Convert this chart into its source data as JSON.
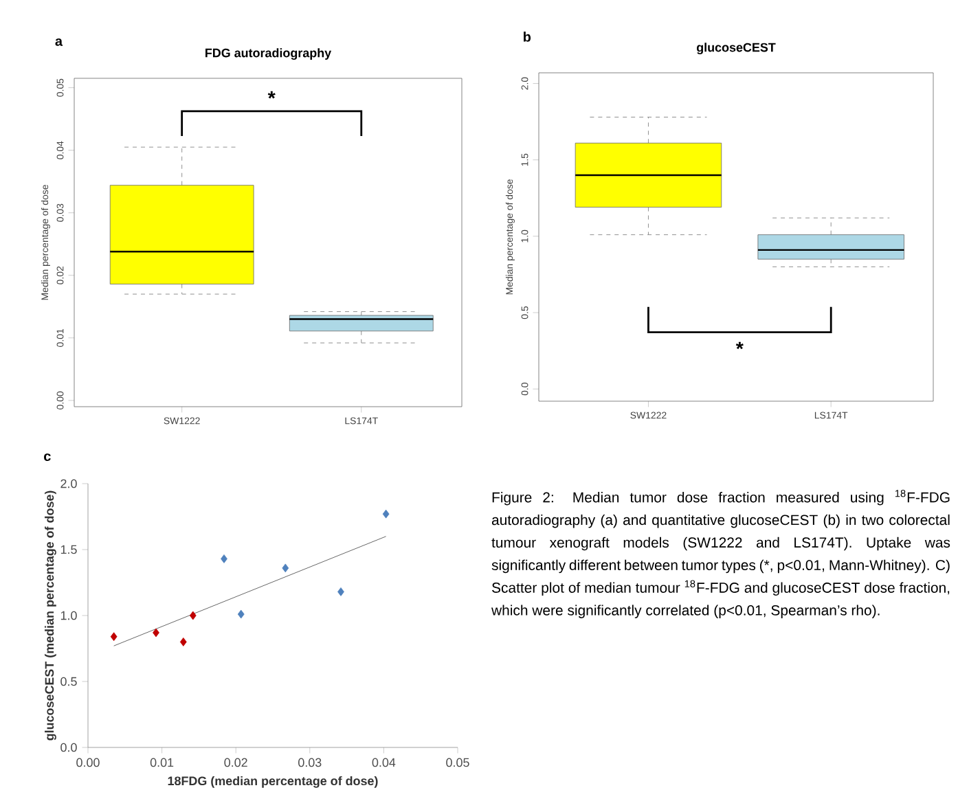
{
  "chart_data": [
    {
      "type": "box",
      "title": "FDG autoradiography",
      "ylabel": "Median percentage of dose",
      "categories": [
        "SW1222",
        "LS174T"
      ],
      "boxes": [
        {
          "low": 0.017,
          "q1": 0.0186,
          "median": 0.0238,
          "q3": 0.0344,
          "high": 0.0405
        },
        {
          "low": 0.0092,
          "q1": 0.0111,
          "median": 0.013,
          "q3": 0.0136,
          "high": 0.0142
        }
      ],
      "colors": [
        "#ffff00",
        "#add8e6"
      ],
      "ylim": [
        -0.001,
        0.0515
      ],
      "yticks": [
        {
          "value": 0,
          "label": "0.00"
        },
        {
          "value": 0.01,
          "label": "0.01"
        },
        {
          "value": 0.02,
          "label": "0.02"
        },
        {
          "value": 0.03,
          "label": "0.03"
        },
        {
          "value": 0.04,
          "label": "0.04"
        },
        {
          "value": 0.05,
          "label": "0.05"
        }
      ],
      "annotations": [
        "a",
        "*"
      ]
    },
    {
      "type": "box",
      "title": "glucoseCEST",
      "ylabel": "Median percentage of dose",
      "categories": [
        "SW1222",
        "LS174T"
      ],
      "boxes": [
        {
          "low": 1.01,
          "q1": 1.19,
          "median": 1.4,
          "q3": 1.61,
          "high": 1.78
        },
        {
          "low": 0.8,
          "q1": 0.85,
          "median": 0.91,
          "q3": 1.01,
          "high": 1.12
        }
      ],
      "colors": [
        "#ffff00",
        "#add8e6"
      ],
      "ylim": [
        -0.08,
        2.07
      ],
      "yticks": [
        {
          "value": 0,
          "label": "0.0"
        },
        {
          "value": 0.5,
          "label": "0.5"
        },
        {
          "value": 1,
          "label": "1.0"
        },
        {
          "value": 1.5,
          "label": "1.5"
        },
        {
          "value": 2,
          "label": "2.0"
        }
      ],
      "annotations": [
        "b",
        "*"
      ]
    },
    {
      "type": "scatter",
      "xlabel": "18FDG (median percentage of dose)",
      "ylabel": "glucoseCEST (median percentage of dose)",
      "marker": "diamond",
      "xlim": [
        0,
        0.05
      ],
      "ylim": [
        0,
        2
      ],
      "xticks": [
        {
          "value": 0,
          "label": "0.00"
        },
        0.01,
        0.02,
        0.03,
        0.04,
        0.05
      ],
      "yticks": [
        {
          "value": 0,
          "label": "0.0"
        },
        0.5,
        {
          "value": 1,
          "label": "1.0"
        },
        1.5,
        {
          "value": 2,
          "label": "2.0"
        }
      ],
      "series": [
        {
          "color": "#c00000",
          "x": [
            0.0035,
            0.0092,
            0.0129,
            0.0142
          ],
          "values": [
            0.84,
            0.87,
            0.8,
            1.0
          ]
        },
        {
          "color": "#4f81bd",
          "x": [
            0.0184,
            0.0207,
            0.0267,
            0.0342,
            0.0403
          ],
          "values": [
            1.43,
            1.01,
            1.36,
            1.18,
            1.77
          ]
        },
        {
          "type": "line",
          "marker": "none",
          "color": "#404040",
          "x": [
            0.0035,
            0.0403
          ],
          "values": [
            0.77,
            1.6
          ]
        }
      ],
      "annotations": [
        "c",
        "Figure 2: Median tumor dose fraction measured using $^{18}$F-FDG autoradiography (a) and quantitative glucoseCEST (b) in two colorectal tumour xenograft models (SW1222 and LS174T). Uptake was significantly different between tumor types (*, p<0.01, Mann-Whitney). C) Scatter plot of median tumour $^{18}$F-FDG and glucoseCEST dose fraction, which were significantly correlated (p<0.01, Spearman’s rho)."
      ]
    }
  ]
}
